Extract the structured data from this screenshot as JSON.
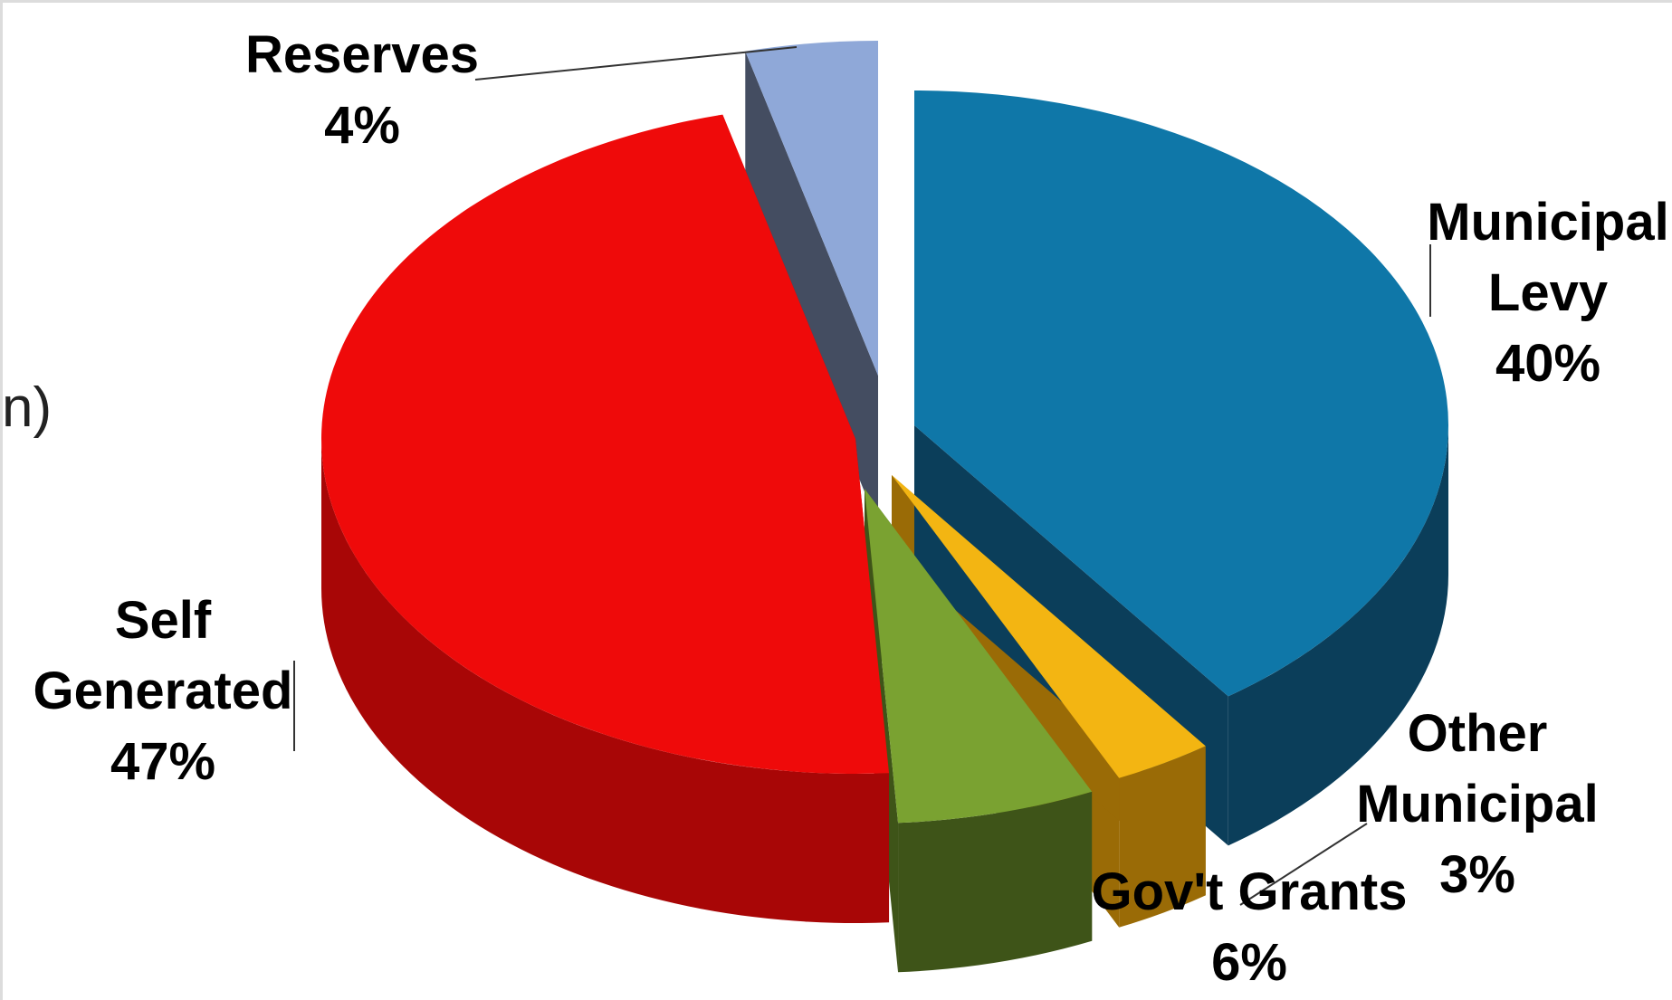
{
  "side_fragment": "n)",
  "chart_data": {
    "type": "pie",
    "style": "3d-exploded",
    "title": "",
    "slices": [
      {
        "name": "Municipal Levy",
        "label_lines": [
          "Municipal",
          "Levy"
        ],
        "value": 40,
        "value_label": "40%",
        "color": "#0f77a8",
        "side_color": "#0b3e5a"
      },
      {
        "name": "Other Municipal",
        "label_lines": [
          "Other",
          "Municipal"
        ],
        "value": 3,
        "value_label": "3%",
        "color": "#f3b512",
        "side_color": "#9a6b06"
      },
      {
        "name": "Gov't Grants",
        "label_lines": [
          "Gov't Grants"
        ],
        "value": 6,
        "value_label": "6%",
        "color": "#7aa231",
        "side_color": "#3e5418"
      },
      {
        "name": "Self Generated",
        "label_lines": [
          "Self",
          "Generated"
        ],
        "value": 47,
        "value_label": "47%",
        "color": "#ef0a0a",
        "side_color": "#a80606"
      },
      {
        "name": "Reserves",
        "label_lines": [
          "Reserves"
        ],
        "value": 4,
        "value_label": "4%",
        "color": "#8fa8d8",
        "side_color": "#3a4358"
      }
    ]
  }
}
